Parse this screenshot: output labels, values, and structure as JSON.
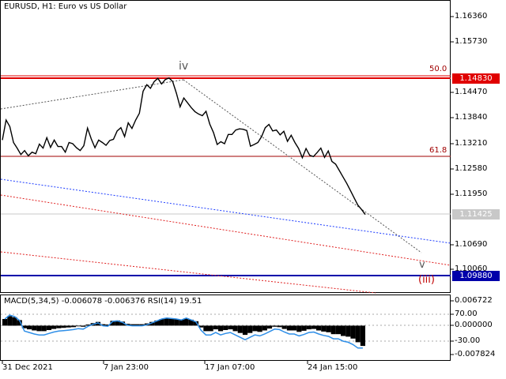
{
  "header": {
    "symbol_title": "EURUSD, H1:  Euro vs US Dollar"
  },
  "price_axis": {
    "labels": [
      "1.16360",
      "1.15730",
      "1.14470",
      "1.13840",
      "1.13210",
      "1.12580",
      "1.11950",
      "1.10690",
      "1.10060"
    ]
  },
  "price_tags": [
    {
      "label": "1.14830",
      "color": "#e00000"
    },
    {
      "label": "1.11425",
      "color": "#c8c8c8"
    },
    {
      "label": "1.09880",
      "color": "#0000aa"
    }
  ],
  "fibonacci_labels": [
    "50.0",
    "61.8"
  ],
  "wave_labels": {
    "iv": "iv",
    "v": "v",
    "iii": "(iii)"
  },
  "indicator": {
    "title": "MACD(5,34,5) -0.006078 -0.006376 RSI(14) 19.51",
    "axis_labels": [
      "0.006722",
      "70.00",
      "0.000000",
      "-30.00",
      "-0.007824"
    ]
  },
  "time_axis": {
    "labels": [
      "31 Dec 2021",
      "7 Jan 23:00",
      "17 Jan 07:00",
      "24 Jan 15:00"
    ]
  },
  "colors": {
    "resistance_line": "#e00000",
    "support_line": "#0000aa",
    "fib_line": "#a00000",
    "blue_channel": "#1c3cff",
    "red_channel": "#e02020",
    "rsi_line": "#2f8fe8",
    "price_line": "#000000"
  },
  "chart_data": {
    "type": "line",
    "title": "EURUSD, H1:  Euro vs US Dollar",
    "x_ticks": [
      "31 Dec 2021",
      "7 Jan 23:00",
      "17 Jan 07:00",
      "24 Jan 15:00"
    ],
    "y_ticks": [
      1.1636,
      1.1573,
      1.1483,
      1.1447,
      1.1384,
      1.1321,
      1.1258,
      1.1195,
      1.11425,
      1.1069,
      1.1006,
      1.0988
    ],
    "ylim": [
      1.0975,
      1.167
    ],
    "series": [
      {
        "name": "EURUSD H1 close",
        "x": [
          0,
          1,
          2,
          3,
          4,
          5,
          6,
          7,
          8,
          9,
          10,
          11,
          12,
          13,
          14,
          15,
          16,
          17,
          18,
          19,
          20,
          21,
          22,
          23,
          24,
          25,
          26,
          27,
          28,
          29,
          30,
          31,
          32,
          33,
          34,
          35,
          36,
          37,
          38,
          39,
          40,
          41,
          42,
          43,
          44,
          45,
          46,
          47,
          48,
          49,
          50,
          51,
          52,
          53,
          54,
          55,
          56,
          57,
          58,
          59,
          60,
          61,
          62,
          63,
          64,
          65,
          66,
          67,
          68,
          69,
          70,
          71,
          72,
          73,
          74,
          75,
          76,
          77,
          78,
          79,
          80,
          81,
          82,
          83,
          84,
          85,
          86,
          87,
          88,
          89,
          90,
          91,
          92,
          93,
          94,
          95,
          96,
          97,
          98
        ],
        "y": [
          1.1328,
          1.1378,
          1.1362,
          1.1322,
          1.1308,
          1.1292,
          1.1302,
          1.1289,
          1.1298,
          1.1294,
          1.1318,
          1.1308,
          1.1334,
          1.131,
          1.1328,
          1.1312,
          1.1312,
          1.1298,
          1.1322,
          1.1319,
          1.1309,
          1.1302,
          1.1314,
          1.1358,
          1.1331,
          1.1309,
          1.1328,
          1.1322,
          1.1315,
          1.1327,
          1.133,
          1.1351,
          1.1359,
          1.1337,
          1.1371,
          1.1357,
          1.1378,
          1.1395,
          1.145,
          1.1466,
          1.1457,
          1.1474,
          1.1482,
          1.1468,
          1.1479,
          1.1483,
          1.1474,
          1.1445,
          1.1411,
          1.1433,
          1.1421,
          1.1409,
          1.1399,
          1.1393,
          1.1389,
          1.14,
          1.1368,
          1.1347,
          1.1317,
          1.1324,
          1.1319,
          1.1342,
          1.1342,
          1.1353,
          1.1356,
          1.1355,
          1.1352,
          1.1313,
          1.1317,
          1.1322,
          1.1337,
          1.1359,
          1.1367,
          1.1351,
          1.1353,
          1.1341,
          1.135,
          1.1325,
          1.134,
          1.1322,
          1.1307,
          1.1284,
          1.1307,
          1.129,
          1.1287,
          1.1297,
          1.1308,
          1.1285,
          1.1301,
          1.1275,
          1.1268,
          1.1252,
          1.1236,
          1.122,
          1.1202,
          1.1184,
          1.1166,
          1.1155,
          1.11425
        ]
      }
    ],
    "annotations": [
      "iv",
      "v",
      "(iii)",
      "50.0",
      "61.8"
    ],
    "horizontal_levels": [
      {
        "label": "50.0",
        "value": 1.1483
      },
      {
        "label": "61.8",
        "value": 1.129
      },
      {
        "label": "1.09880",
        "value": 1.0988
      }
    ],
    "indicator": {
      "name": "MACD(5,34,5) -0.006078 -0.006376 RSI(14) 19.51",
      "macd_histogram": [
        0.0018,
        0.0026,
        0.0023,
        0.0015,
        -0.0007,
        -0.001,
        -0.0013,
        -0.0015,
        -0.0015,
        -0.0012,
        -0.0009,
        -0.0007,
        -0.0006,
        -0.0005,
        -0.0004,
        -0.0002,
        -0.0003,
        0.0003,
        0.0007,
        0.001,
        0.0004,
        0.0003,
        0.0013,
        0.0014,
        0.0011,
        0.0005,
        0.0004,
        0.0004,
        0.0004,
        0.0006,
        0.001,
        0.0014,
        0.0018,
        0.002,
        0.0019,
        0.0018,
        0.0016,
        0.002,
        0.0016,
        0.0012,
        -0.0005,
        -0.0015,
        -0.0015,
        -0.001,
        -0.0015,
        -0.0012,
        -0.001,
        -0.0015,
        -0.002,
        -0.0025,
        -0.002,
        -0.0015,
        -0.0017,
        -0.0013,
        -0.0008,
        -0.0003,
        -0.0004,
        -0.0009,
        -0.0013,
        -0.0013,
        -0.0017,
        -0.0014,
        -0.001,
        -0.0009,
        -0.0013,
        -0.0016,
        -0.0018,
        -0.0023,
        -0.0023,
        -0.0028,
        -0.003,
        -0.0035,
        -0.0045,
        -0.0055
      ],
      "rsi_ylim": [
        0,
        100
      ],
      "macd_ylim": [
        -0.007824,
        0.006722
      ]
    }
  }
}
